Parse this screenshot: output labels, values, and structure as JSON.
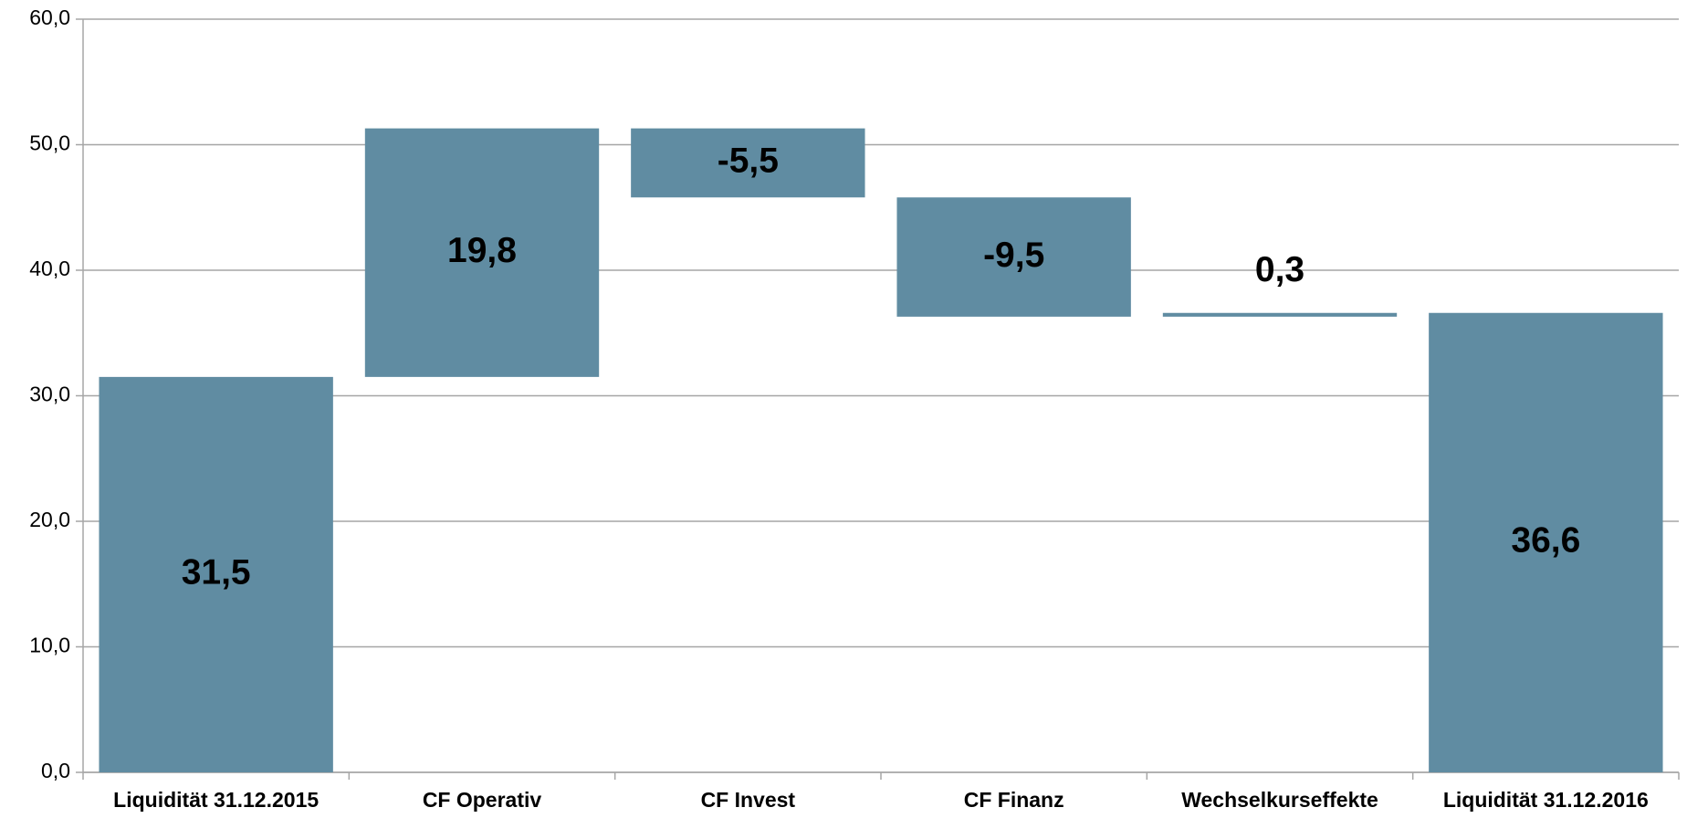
{
  "chart_data": {
    "type": "waterfall",
    "categories": [
      "Liquidität 31.12.2015",
      "CF Operativ",
      "CF Invest",
      "CF Finanz",
      "Wechselkurseffekte",
      "Liquidität 31.12.2016"
    ],
    "values": [
      31.5,
      19.8,
      -5.5,
      -9.5,
      0.3,
      36.6
    ],
    "value_labels": [
      "31,5",
      "19,8",
      "-5,5",
      "-9,5",
      "0,3",
      "36,6"
    ],
    "color": "#608ca2",
    "ylim": [
      0,
      60
    ],
    "yticks": [
      {
        "value": 0,
        "label": "0,0"
      },
      {
        "value": 10,
        "label": "10,0"
      },
      {
        "value": 20,
        "label": "20,0"
      },
      {
        "value": 30,
        "label": "30,0"
      },
      {
        "value": 40,
        "label": "40,0"
      },
      {
        "value": 50,
        "label": "50,0"
      },
      {
        "value": 60,
        "label": "60,0"
      }
    ],
    "grid": true
  }
}
